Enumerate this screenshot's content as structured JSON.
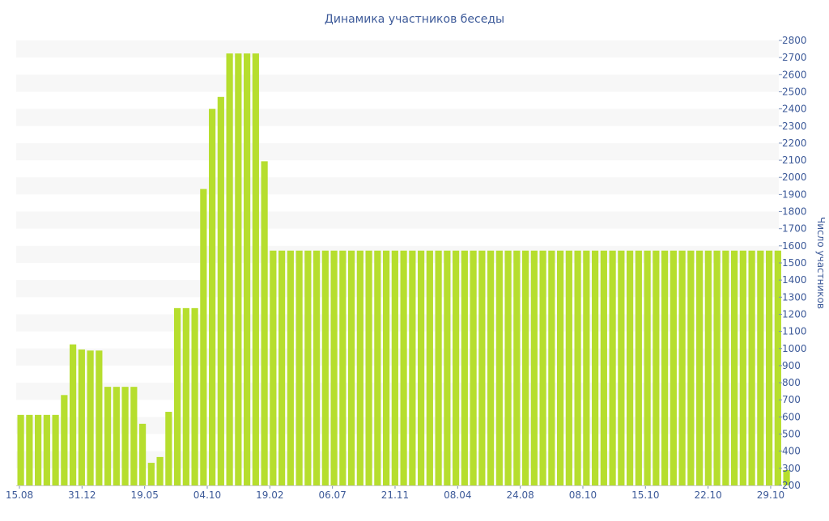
{
  "chart_data": {
    "type": "bar",
    "title": "Динамика участников беседы",
    "ylabel": "Число участников",
    "ylim": [
      200,
      2800
    ],
    "y_ticks": [
      200,
      300,
      400,
      500,
      600,
      700,
      800,
      900,
      1000,
      1100,
      1200,
      1300,
      1400,
      1500,
      1600,
      1700,
      1800,
      1900,
      2000,
      2100,
      2200,
      2300,
      2400,
      2500,
      2600,
      2700,
      2800
    ],
    "x_tick_labels": [
      "15.08",
      "31.12",
      "19.05",
      "04.10",
      "19.02",
      "06.07",
      "21.11",
      "08.04",
      "24.08",
      "08.10",
      "15.10",
      "22.10",
      "29.10"
    ],
    "y_axis_position": "right",
    "grid": "alternating horizontal bands",
    "bar_color": "#b6de2e",
    "values": [
      612,
      612,
      612,
      612,
      612,
      728,
      1024,
      994,
      988,
      988,
      776,
      776,
      776,
      776,
      560,
      332,
      366,
      630,
      1236,
      1236,
      1236,
      1932,
      2400,
      2470,
      2724,
      2724,
      2724,
      2724,
      2094,
      1572,
      1572,
      1572,
      1572,
      1572,
      1572,
      1572,
      1572,
      1572,
      1572,
      1572,
      1572,
      1572,
      1572,
      1572,
      1572,
      1572,
      1572,
      1572,
      1572,
      1572,
      1572,
      1572,
      1572,
      1572,
      1572,
      1572,
      1572,
      1572,
      1572,
      1572,
      1572,
      1572,
      1572,
      1572,
      1572,
      1572,
      1572,
      1572,
      1572,
      1572,
      1572,
      1572,
      1572,
      1572,
      1572,
      1572,
      1572,
      1572,
      1572,
      1572,
      1572,
      1572,
      1572,
      1572,
      1572,
      1572,
      1572,
      1572,
      290
    ]
  }
}
